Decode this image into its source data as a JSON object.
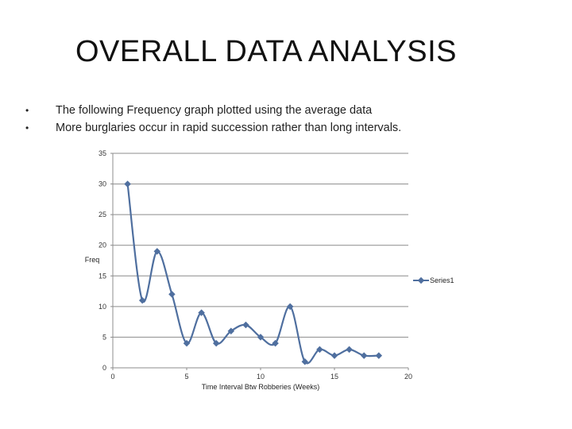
{
  "slide": {
    "title": "OVERALL DATA ANALYSIS",
    "bullets": [
      "The following Frequency graph plotted using the average data",
      "More burglaries occur in rapid succession rather than long intervals."
    ]
  },
  "chart_data": {
    "type": "scatter",
    "title": "",
    "xlabel": "Time Interval Btw Robberies (Weeks)",
    "ylabel": "Freq",
    "xlim": [
      0,
      20
    ],
    "ylim": [
      0,
      35
    ],
    "x_ticks": [
      0,
      5,
      10,
      15,
      20
    ],
    "y_ticks": [
      0,
      5,
      10,
      15,
      20,
      25,
      30,
      35
    ],
    "grid": "horizontal",
    "legend": "right",
    "smooth": true,
    "series": [
      {
        "name": "Series1",
        "color": "#4f6f9f",
        "x": [
          1,
          2,
          3,
          4,
          5,
          6,
          7,
          8,
          9,
          10,
          11,
          12,
          13,
          14,
          15,
          16,
          17,
          18
        ],
        "y": [
          30,
          11,
          19,
          12,
          4,
          9,
          4,
          6,
          7,
          5,
          4,
          10,
          1,
          3,
          2,
          3,
          2,
          2
        ]
      }
    ]
  }
}
